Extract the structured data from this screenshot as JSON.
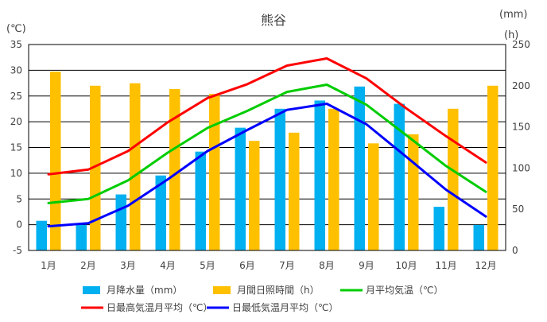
{
  "chart_data": {
    "type": "bar+line",
    "title": "熊谷",
    "left_unit": "(℃)",
    "right_unit_top": "(mm)",
    "right_unit_bottom": "(h)",
    "categories": [
      "1月",
      "2月",
      "3月",
      "4月",
      "5月",
      "6月",
      "7月",
      "8月",
      "9月",
      "10月",
      "11月",
      "12月"
    ],
    "ylim_left": [
      -5,
      35
    ],
    "yticks_left": [
      -5,
      0,
      5,
      10,
      15,
      20,
      25,
      30,
      35
    ],
    "ylim_right": [
      0,
      250
    ],
    "yticks_right": [
      0,
      50,
      100,
      150,
      200,
      250
    ],
    "grid": true,
    "legend_position": "bottom",
    "bar_series": [
      {
        "name": "月降水量（mm）",
        "axis": "right",
        "color": "#00b0f0",
        "values": [
          36,
          31,
          68,
          91,
          120,
          149,
          172,
          182,
          199,
          178,
          53,
          31
        ]
      },
      {
        "name": "月間日照時間（h）",
        "axis": "right",
        "color": "#ffc000",
        "values": [
          217,
          200,
          203,
          196,
          190,
          133,
          143,
          172,
          130,
          141,
          172,
          200
        ]
      }
    ],
    "line_series": [
      {
        "name": "月平均気温（℃）",
        "axis": "left",
        "color": "#00cc00",
        "values": [
          4.2,
          5.0,
          8.6,
          14.0,
          18.8,
          22.1,
          25.8,
          27.2,
          23.3,
          17.4,
          11.4,
          6.4
        ]
      },
      {
        "name": "日最高気温月平均（℃）",
        "axis": "left",
        "color": "#ff0000",
        "values": [
          9.8,
          10.7,
          14.3,
          19.9,
          24.6,
          27.3,
          30.9,
          32.3,
          28.4,
          22.6,
          17.2,
          12.1
        ]
      },
      {
        "name": "日最低気温月平均（℃）",
        "axis": "left",
        "color": "#0000ff",
        "values": [
          -0.3,
          0.3,
          3.7,
          8.8,
          14.3,
          18.4,
          22.3,
          23.5,
          19.5,
          13.2,
          6.8,
          1.6
        ]
      }
    ]
  }
}
